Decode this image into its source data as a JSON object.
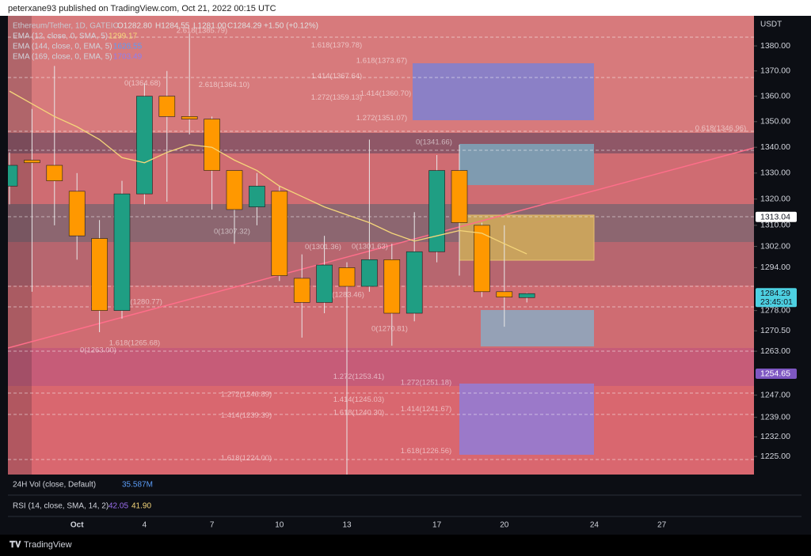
{
  "header": {
    "published": "peterxane93 published on TradingView.com, Oct 21, 2022 00:15 UTC",
    "brand": "TradingView"
  },
  "chart_data": {
    "type": "candlestick",
    "symbol": "Ethereum/Tether, 1D, GATEIO",
    "ohlc_legend": [
      "O1282.80",
      "H1284.55",
      "L1281.00",
      "C1284.29",
      "+1.50 (+0.12%)"
    ],
    "currency": "USDT",
    "categories": [
      null,
      null,
      null,
      "Oct",
      null,
      null,
      "4",
      null,
      null,
      "7",
      null,
      null,
      "10",
      null,
      null,
      "13",
      null,
      null,
      null,
      "17",
      null,
      null,
      "20",
      null,
      null,
      null,
      "24",
      null,
      null,
      "27",
      null,
      null,
      null,
      null
    ],
    "open": [
      1325,
      1335,
      1333,
      1323,
      1305,
      1278,
      1322,
      1360,
      1352,
      1351,
      1331,
      1317,
      1323,
      1290,
      1281,
      1294,
      1287,
      1297,
      1277,
      1300,
      1331,
      1310,
      1285,
      1282.8,
      null,
      null,
      null,
      null,
      null,
      null,
      null,
      null,
      null,
      null
    ],
    "high": [
      1338,
      1355,
      1372,
      1330,
      1312,
      1327,
      1365,
      1370,
      1385,
      1352,
      1331,
      1330,
      1325,
      1299,
      1306,
      1296,
      1343,
      1303,
      1315,
      1337,
      1341,
      1311,
      1310,
      1284.55,
      null,
      null,
      null,
      null,
      null,
      null,
      null,
      null,
      null,
      null
    ],
    "low": [
      1318,
      1285,
      1310,
      1297,
      1270,
      1275,
      1318,
      1319,
      1345,
      1316,
      1303,
      1310,
      1289,
      1268,
      1277,
      1190,
      1285,
      1265,
      1274,
      1296,
      1291,
      1283,
      1272,
      1281.0,
      null,
      null,
      null,
      null,
      null,
      null,
      null,
      null,
      null,
      null
    ],
    "close": [
      1333,
      1334,
      1327,
      1306,
      1278,
      1322,
      1360,
      1352,
      1351,
      1331,
      1316,
      1325,
      1291,
      1281,
      1295,
      1287,
      1297,
      1277,
      1300,
      1331,
      1311,
      1285,
      1283,
      1284.29,
      null,
      null,
      null,
      null,
      null,
      null,
      null,
      null,
      null,
      null
    ],
    "up_color": "#1f9e83",
    "down_color": "#ff9800",
    "series": [
      {
        "name": "EMA (12, close, 0, SMA, 5)",
        "color": "#f5d67a",
        "values": [
          1362,
          1357,
          1352,
          1348,
          1343,
          1336,
          1334,
          1338,
          1341,
          1340,
          1335,
          1331,
          1325,
          1321,
          1317,
          1314,
          1311,
          1307,
          1304,
          1306,
          1308,
          1307,
          1303,
          1299.17,
          null,
          null,
          null,
          null,
          null,
          null,
          null,
          null,
          null,
          null
        ]
      }
    ],
    "indicators": [
      {
        "name": "EMA (144, close, 0, EMA, 5)",
        "color": "#5b9cf6",
        "value": 1628.55
      },
      {
        "name": "EMA (169, close, 0, EMA, 5)",
        "color": "#8d7ff0",
        "value": 1703.49
      }
    ],
    "log_scale": true,
    "ylim": [
      1218.6,
      1392.1
    ],
    "yticks": [
      {
        "value": 1380,
        "label": "1380.00"
      },
      {
        "value": 1370,
        "label": "1370.00"
      },
      {
        "value": 1360,
        "label": "1360.00"
      },
      {
        "value": 1350,
        "label": "1350.00"
      },
      {
        "value": 1340,
        "label": "1340.00"
      },
      {
        "value": 1330,
        "label": "1330.00"
      },
      {
        "value": 1320,
        "label": "1320.00"
      },
      {
        "value": 1310,
        "label": "1310.00"
      },
      {
        "value": 1302,
        "label": "1302.00"
      },
      {
        "value": 1294,
        "label": "1294.00"
      },
      {
        "value": 1278,
        "label": "1278.00"
      },
      {
        "value": 1270.5,
        "label": "1270.50"
      },
      {
        "value": 1263,
        "label": "1263.00"
      },
      {
        "value": 1247,
        "label": "1247.00"
      },
      {
        "value": 1239,
        "label": "1239.00"
      },
      {
        "value": 1232,
        "label": "1232.00"
      },
      {
        "value": 1225,
        "label": "1225.00"
      }
    ],
    "price_badges": [
      {
        "value": 1313.04,
        "label": "1313.04",
        "color": "#ffffff"
      },
      {
        "value": 1284.29,
        "label": "1284.29",
        "color": "#4dd0e1",
        "countdown": "23:45:01"
      },
      {
        "value": 1254.65,
        "label": "1254.65",
        "color": "#7e57c2"
      }
    ],
    "annotations": [
      {
        "label": "2.618(1385.79)",
        "price": 1385.79
      },
      {
        "label": "1.618(1379.78)",
        "price": 1379.78
      },
      {
        "label": "1.618(1373.67)",
        "price": 1373.67
      },
      {
        "label": "1.414(1367.64)",
        "price": 1367.64
      },
      {
        "label": "0(1364.68)",
        "price": 1364.68
      },
      {
        "label": "2.618(1364.10)",
        "price": 1364.1
      },
      {
        "label": "1.414(1360.70)",
        "price": 1360.7
      },
      {
        "label": "1.272(1359.13)",
        "price": 1359.13
      },
      {
        "label": "1.272(1351.07)",
        "price": 1351.07
      },
      {
        "label": "0.618(1346.96)",
        "price": 1346.96
      },
      {
        "label": "0(1341.66)",
        "price": 1341.66
      },
      {
        "label": "0(1307.32)",
        "price": 1307.32
      },
      {
        "label": "0(1301.36)",
        "price": 1301.36
      },
      {
        "label": "0(1301.63)",
        "price": 1301.63
      },
      {
        "label": "0(1280.77)",
        "price": 1280.77
      },
      {
        "label": "0(1283.46)",
        "price": 1283.46
      },
      {
        "label": "0(1270.81)",
        "price": 1270.81
      },
      {
        "label": "1.618(1265.68)",
        "price": 1265.68
      },
      {
        "label": "0(1263.00)",
        "price": 1263.0
      },
      {
        "label": "1.272(1253.41)",
        "price": 1253.41
      },
      {
        "label": "1.272(1251.18)",
        "price": 1251.18
      },
      {
        "label": "1.272(1246.89)",
        "price": 1246.89
      },
      {
        "label": "1.414(1245.03)",
        "price": 1245.03
      },
      {
        "label": "1.618(1240.30)",
        "price": 1240.3
      },
      {
        "label": "1.414(1241.67)",
        "price": 1241.67
      },
      {
        "label": "1.414(1239.39)",
        "price": 1239.39
      },
      {
        "label": "1.618(1226.56)",
        "price": 1226.56
      },
      {
        "label": "1.618(1224.00)",
        "price": 1224.0
      }
    ]
  },
  "panes": {
    "volume": {
      "title": "24H Vol (close, Default)",
      "value": "35.587M"
    },
    "rsi": {
      "title": "RSI (14, close, SMA, 14, 2)",
      "values": [
        "42.05",
        "41.90"
      ]
    }
  }
}
